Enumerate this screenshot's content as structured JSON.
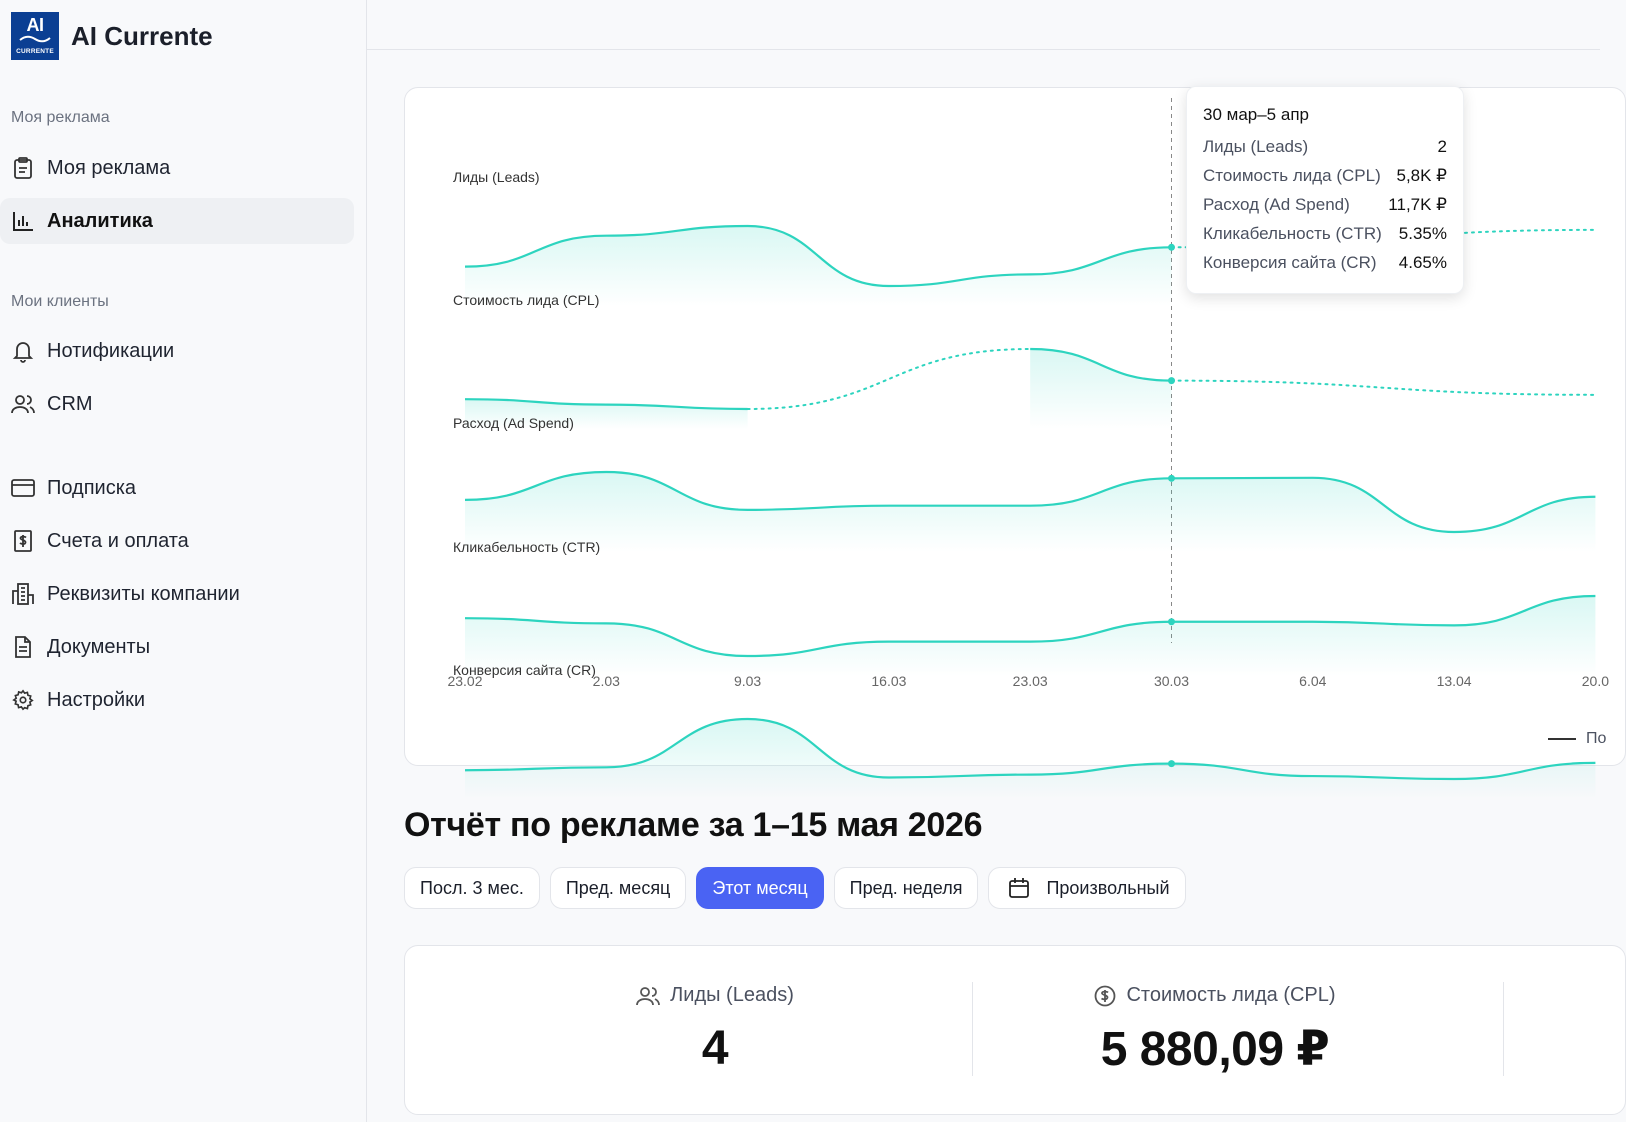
{
  "brand": {
    "logo_top": "AI",
    "logo_bottom": "CURRENTE",
    "name": "AI Currente",
    "logo_color": "#0b3f93"
  },
  "sidebar": {
    "sections": [
      {
        "label": "Моя реклама"
      },
      {
        "label": "Мои клиенты"
      }
    ],
    "items": [
      {
        "label": "Моя реклама",
        "icon": "clipboard-icon"
      },
      {
        "label": "Аналитика",
        "icon": "bar-chart-icon",
        "active": true
      },
      {
        "label": "Нотификации",
        "icon": "bell-icon"
      },
      {
        "label": "CRM",
        "icon": "users-icon"
      },
      {
        "label": "Подписка",
        "icon": "credit-card-icon"
      },
      {
        "label": "Счета и оплата",
        "icon": "receipt-icon"
      },
      {
        "label": "Реквизиты компании",
        "icon": "building-icon"
      },
      {
        "label": "Документы",
        "icon": "document-icon"
      },
      {
        "label": "Настройки",
        "icon": "gear-icon"
      }
    ]
  },
  "chart": {
    "accent": "#2dd4bf",
    "tooltip": {
      "title": "30 мар–5 апр",
      "rows": [
        {
          "label": "Лиды (Leads)",
          "value": "2"
        },
        {
          "label": "Стоимость лида (CPL)",
          "value": "5,8K ₽"
        },
        {
          "label": "Расход (Ad Spend)",
          "value": "11,7K ₽"
        },
        {
          "label": "Кликабельность (CTR)",
          "value": "5.35%"
        },
        {
          "label": "Конверсия сайта (CR)",
          "value": "4.65%"
        }
      ]
    },
    "legend_fragment": "По"
  },
  "chart_data": {
    "type": "line",
    "x": [
      "23.02",
      "2.03",
      "9.03",
      "16.03",
      "23.03",
      "30.03",
      "6.04",
      "13.04",
      "20.0"
    ],
    "series": [
      {
        "name": "Лиды (Leads)",
        "values": [
          1,
          2.6,
          3.1,
          0,
          0.6,
          2,
          null,
          null,
          2.9
        ]
      },
      {
        "name": "Стоимость лида (CPL)",
        "values": [
          4.1,
          3.6,
          3.2,
          null,
          8.7,
          5.8,
          null,
          null,
          4.5
        ]
      },
      {
        "name": "Расход (Ad Spend)",
        "values": [
          7.6,
          12.9,
          5.7,
          6.5,
          6.5,
          11.7,
          11.8,
          1.5,
          8.2
        ]
      },
      {
        "name": "Кликабельность (CTR)",
        "values": [
          5.9,
          5.1,
          0.1,
          2.3,
          2.3,
          5.35,
          5.35,
          4.8,
          9.3
        ]
      },
      {
        "name": "Конверсия сайта (CR)",
        "values": [
          4.2,
          4.4,
          7.7,
          3.7,
          3.9,
          4.65,
          3.8,
          3.6,
          4.7
        ]
      }
    ],
    "highlight_x": "30.03",
    "grid": false
  },
  "report": {
    "title": "Отчёт по рекламе за 1–15 мая 2026",
    "filters": [
      {
        "label": "Посл. 3 мес."
      },
      {
        "label": "Пред. месяц"
      },
      {
        "label": "Этот месяц",
        "active": true
      },
      {
        "label": "Пред. неделя"
      },
      {
        "label": "Произвольный",
        "icon": "calendar-icon"
      }
    ],
    "stats": [
      {
        "label": "Лиды (Leads)",
        "value": "4",
        "icon": "users-icon"
      },
      {
        "label": "Стоимость лида (CPL)",
        "value": "5 880,09 ₽",
        "icon": "dollar-circle-icon"
      }
    ]
  }
}
